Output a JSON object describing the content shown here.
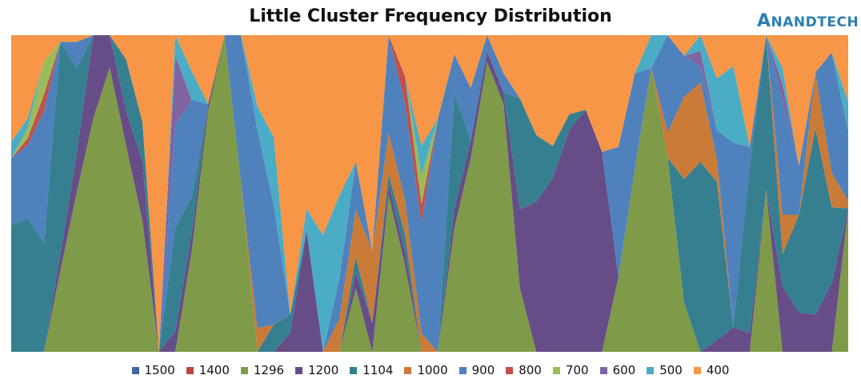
{
  "chart_data": {
    "type": "area",
    "stacked": "100%",
    "title": "Little Cluster Frequency Distribution",
    "xlabel": "",
    "ylabel": "",
    "ylim": [
      0,
      100
    ],
    "grid": false,
    "legend_position": "bottom",
    "series": [
      {
        "name": "1500",
        "color": "#3f67a1",
        "values": [
          0,
          0,
          0,
          0,
          0,
          0,
          0,
          0,
          0,
          0,
          0,
          0,
          0,
          0,
          0,
          0,
          0,
          0,
          0,
          0,
          0,
          0,
          0,
          0,
          0,
          0,
          0,
          0,
          0,
          0,
          0,
          0,
          0,
          0,
          0,
          0,
          0,
          0,
          0,
          0,
          0,
          0,
          0,
          0,
          0,
          0,
          0,
          0,
          0,
          0,
          0,
          0
        ]
      },
      {
        "name": "1400",
        "color": "#b7463f",
        "values": [
          0,
          0,
          0,
          0,
          0,
          0,
          0,
          0,
          0,
          0,
          0,
          0,
          0,
          0,
          0,
          0,
          0,
          0,
          0,
          0,
          0,
          0,
          0,
          0,
          0,
          0,
          0,
          0,
          0,
          0,
          0,
          0,
          0,
          0,
          0,
          0,
          0,
          0,
          0,
          0,
          0,
          0,
          0,
          0,
          0,
          0,
          0,
          0,
          0,
          0,
          0,
          0
        ]
      },
      {
        "name": "1296",
        "color": "#7f9a48",
        "values": [
          0,
          0,
          0,
          25,
          48,
          70,
          88,
          60,
          33,
          0,
          0,
          28,
          70,
          92,
          52,
          0,
          0,
          0,
          0,
          0,
          0,
          20,
          0,
          45,
          25,
          0,
          0,
          32,
          55,
          87,
          65,
          20,
          0,
          0,
          0,
          0,
          0,
          20,
          48,
          86,
          60,
          12,
          0,
          0,
          0,
          0,
          42,
          0,
          0,
          0,
          0,
          58
        ]
      },
      {
        "name": "1200",
        "color": "#664d87",
        "values": [
          0,
          0,
          0,
          5,
          12,
          25,
          10,
          10,
          15,
          0,
          6,
          5,
          2,
          0,
          0,
          0,
          0,
          5,
          28,
          0,
          0,
          5,
          8,
          3,
          4,
          0,
          0,
          5,
          5,
          3,
          3,
          25,
          45,
          55,
          70,
          65,
          60,
          0,
          0,
          0,
          0,
          0,
          0,
          4,
          8,
          5,
          0,
          20,
          12,
          10,
          20,
          0
        ]
      },
      {
        "name": "1104",
        "color": "#357f91",
        "values": [
          38,
          40,
          33,
          65,
          25,
          0,
          0,
          15,
          10,
          0,
          30,
          10,
          0,
          0,
          0,
          0,
          8,
          5,
          0,
          0,
          0,
          5,
          0,
          3,
          5,
          0,
          0,
          30,
          0,
          0,
          0,
          35,
          20,
          10,
          5,
          0,
          0,
          0,
          0,
          0,
          0,
          30,
          60,
          55,
          0,
          45,
          40,
          10,
          30,
          50,
          22,
          0
        ]
      },
      {
        "name": "1000",
        "color": "#c97b37",
        "values": [
          0,
          0,
          0,
          0,
          0,
          0,
          0,
          0,
          0,
          0,
          0,
          0,
          0,
          0,
          0,
          5,
          0,
          0,
          0,
          0,
          10,
          15,
          20,
          12,
          10,
          5,
          0,
          0,
          0,
          0,
          0,
          0,
          0,
          0,
          0,
          0,
          0,
          0,
          0,
          0,
          8,
          20,
          25,
          8,
          0,
          0,
          0,
          12,
          0,
          15,
          10,
          3
        ]
      },
      {
        "name": "900",
        "color": "#4f81bd",
        "values": [
          20,
          22,
          40,
          0,
          8,
          0,
          0,
          0,
          0,
          0,
          30,
          27,
          0,
          0,
          45,
          42,
          35,
          0,
          0,
          0,
          12,
          15,
          0,
          28,
          28,
          30,
          70,
          10,
          15,
          5,
          5,
          0,
          0,
          0,
          0,
          0,
          0,
          35,
          25,
          0,
          30,
          10,
          5,
          10,
          60,
          5,
          0,
          35,
          15,
          0,
          35,
          28
        ]
      },
      {
        "name": "800",
        "color": "#c0504d",
        "values": [
          0,
          2,
          5,
          0,
          0,
          0,
          0,
          0,
          0,
          0,
          0,
          0,
          0,
          0,
          0,
          0,
          0,
          0,
          0,
          0,
          0,
          0,
          0,
          0,
          8,
          5,
          0,
          0,
          0,
          0,
          0,
          0,
          0,
          0,
          0,
          0,
          0,
          0,
          0,
          0,
          0,
          0,
          0,
          0,
          0,
          0,
          0,
          0,
          0,
          0,
          0,
          0
        ]
      },
      {
        "name": "700",
        "color": "#9bbb59",
        "values": [
          0,
          3,
          10,
          0,
          0,
          0,
          0,
          0,
          0,
          0,
          0,
          0,
          0,
          0,
          0,
          0,
          0,
          0,
          0,
          0,
          0,
          0,
          0,
          0,
          0,
          8,
          0,
          0,
          0,
          0,
          0,
          0,
          0,
          0,
          0,
          0,
          0,
          0,
          0,
          0,
          0,
          0,
          0,
          0,
          0,
          0,
          0,
          0,
          0,
          0,
          0,
          0
        ]
      },
      {
        "name": "600",
        "color": "#8064a2",
        "values": [
          0,
          0,
          0,
          0,
          0,
          0,
          0,
          0,
          0,
          0,
          20,
          0,
          0,
          0,
          0,
          0,
          0,
          0,
          0,
          0,
          0,
          0,
          0,
          0,
          0,
          0,
          0,
          0,
          0,
          0,
          0,
          0,
          0,
          0,
          0,
          0,
          0,
          0,
          0,
          0,
          0,
          0,
          5,
          0,
          0,
          0,
          0,
          5,
          0,
          0,
          0,
          0
        ]
      },
      {
        "name": "500",
        "color": "#4bacc6",
        "values": [
          5,
          3,
          0,
          0,
          0,
          0,
          0,
          0,
          0,
          0,
          6,
          8,
          0,
          0,
          0,
          5,
          20,
          0,
          5,
          35,
          25,
          0,
          0,
          0,
          0,
          8,
          0,
          0,
          0,
          0,
          0,
          0,
          0,
          0,
          0,
          0,
          0,
          0,
          0,
          10,
          0,
          0,
          5,
          18,
          25,
          0,
          0,
          5,
          0,
          0,
          0,
          12
        ]
      },
      {
        "name": "400",
        "color": "#f79646",
        "values": [
          32,
          25,
          8,
          2,
          2,
          0,
          0,
          7,
          22,
          100,
          0,
          10,
          20,
          0,
          0,
          15,
          30,
          75,
          40,
          60,
          48,
          40,
          60,
          0,
          12,
          30,
          25,
          5,
          15,
          0,
          10,
          20,
          30,
          35,
          25,
          20,
          35,
          30,
          10,
          0,
          0,
          5,
          0,
          15,
          10,
          30,
          0,
          10,
          40,
          10,
          5,
          27
        ]
      }
    ]
  },
  "legend": [
    {
      "label": "1500",
      "color": "#3f67a1"
    },
    {
      "label": "1400",
      "color": "#b7463f"
    },
    {
      "label": "1296",
      "color": "#7f9a48"
    },
    {
      "label": "1200",
      "color": "#664d87"
    },
    {
      "label": "1104",
      "color": "#357f91"
    },
    {
      "label": "1000",
      "color": "#c97b37"
    },
    {
      "label": "900",
      "color": "#4f81bd"
    },
    {
      "label": "800",
      "color": "#c0504d"
    },
    {
      "label": "700",
      "color": "#9bbb59"
    },
    {
      "label": "600",
      "color": "#8064a2"
    },
    {
      "label": "500",
      "color": "#4bacc6"
    },
    {
      "label": "400",
      "color": "#f79646"
    }
  ],
  "logo": {
    "big": "A",
    "rest": "NANDTECH"
  }
}
